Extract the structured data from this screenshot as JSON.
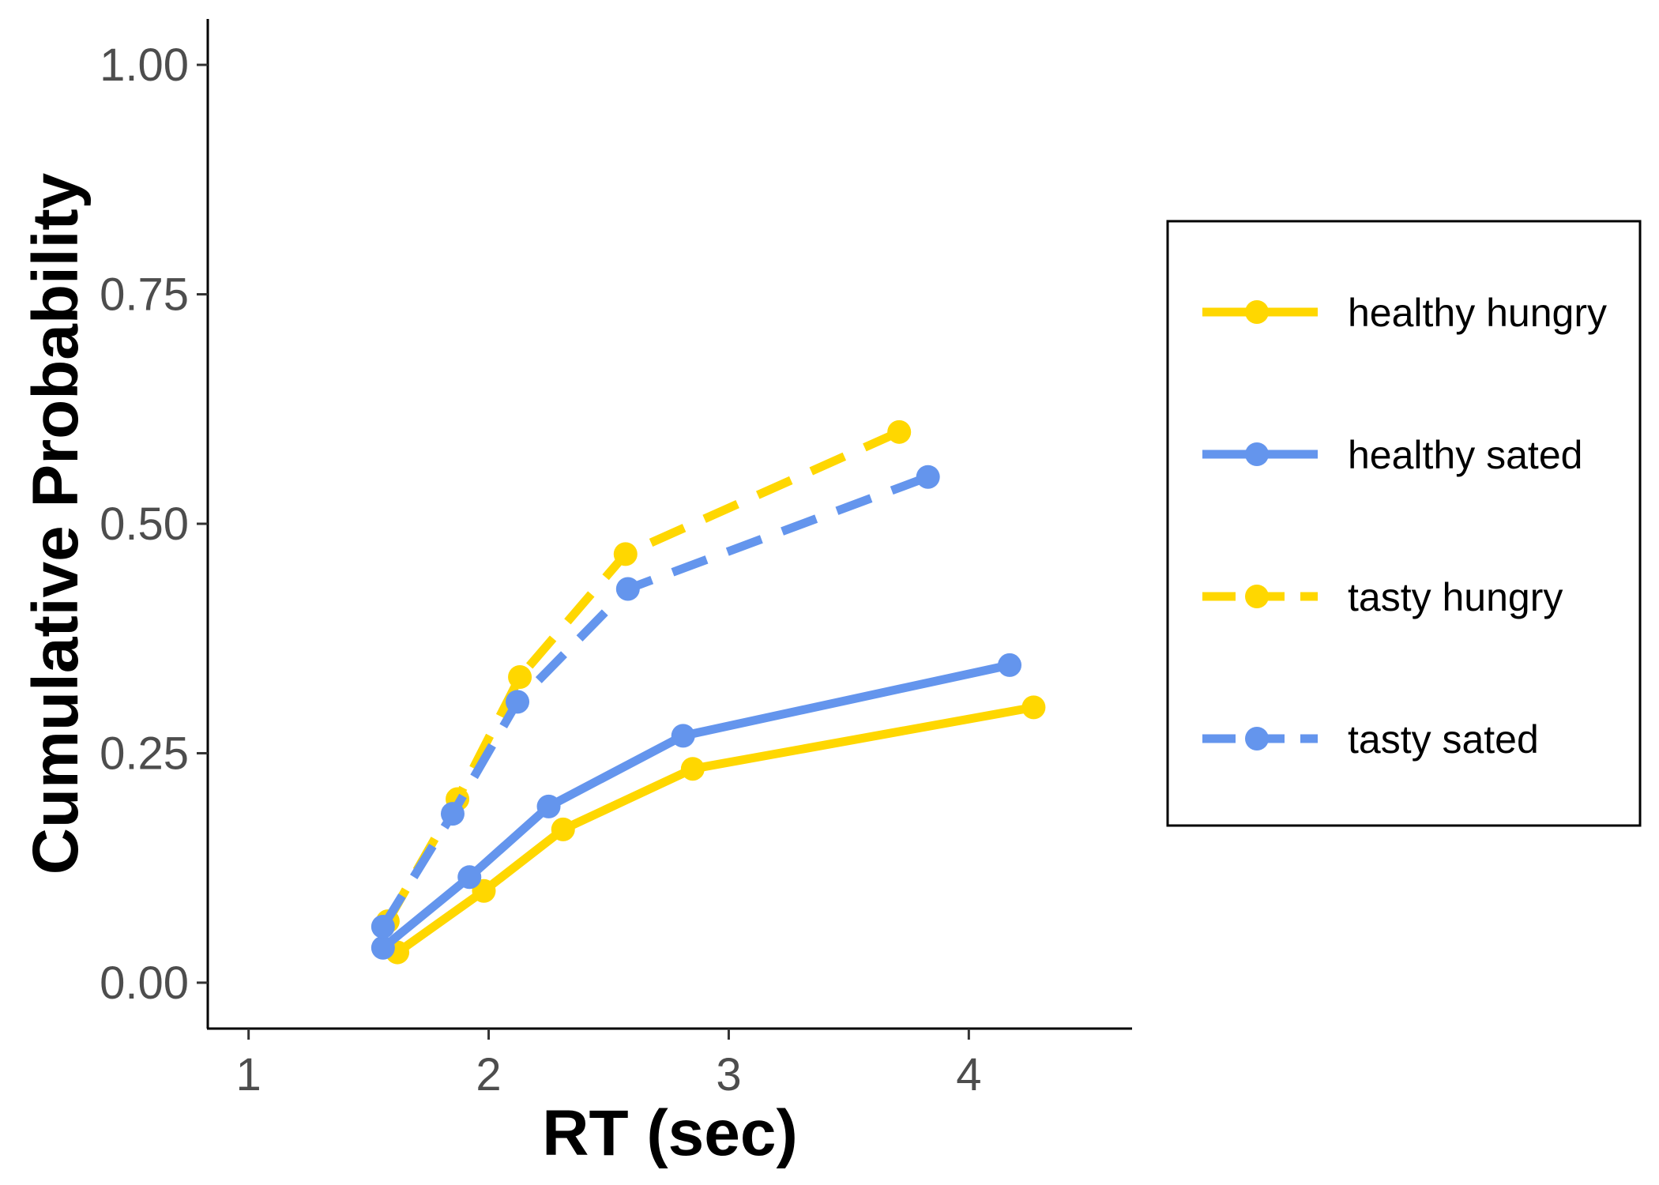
{
  "chart_data": {
    "type": "line",
    "title": "",
    "xlabel": "RT (sec)",
    "ylabel": "Cumulative Probability",
    "xlim": [
      0.83,
      4.68
    ],
    "ylim": [
      -0.05,
      1.05
    ],
    "x_ticks": [
      1,
      2,
      3,
      4
    ],
    "x_tick_labels": [
      "1",
      "2",
      "3",
      "4"
    ],
    "y_ticks": [
      0,
      0.25,
      0.5,
      0.75,
      1
    ],
    "y_tick_labels": [
      "0.00",
      "0.25",
      "0.50",
      "0.75",
      "1.00"
    ],
    "grid": false,
    "legend_position": "right",
    "series": [
      {
        "name": "healthy hungry",
        "color": "#FFD700",
        "dash": "solid",
        "x": [
          1.62,
          1.98,
          2.31,
          2.85,
          4.27
        ],
        "y": [
          0.033,
          0.1,
          0.167,
          0.233,
          0.3
        ]
      },
      {
        "name": "healthy sated",
        "color": "#6495ED",
        "dash": "solid",
        "x": [
          1.56,
          1.92,
          2.25,
          2.81,
          4.17
        ],
        "y": [
          0.038,
          0.115,
          0.192,
          0.269,
          0.346
        ]
      },
      {
        "name": "tasty hungry",
        "color": "#FFD700",
        "dash": "dashed",
        "x": [
          1.58,
          1.87,
          2.13,
          2.57,
          3.71
        ],
        "y": [
          0.067,
          0.2,
          0.333,
          0.467,
          0.6
        ]
      },
      {
        "name": "tasty sated",
        "color": "#6495ED",
        "dash": "dashed",
        "x": [
          1.56,
          1.85,
          2.12,
          2.58,
          3.83
        ],
        "y": [
          0.061,
          0.184,
          0.306,
          0.429,
          0.551
        ]
      }
    ]
  }
}
